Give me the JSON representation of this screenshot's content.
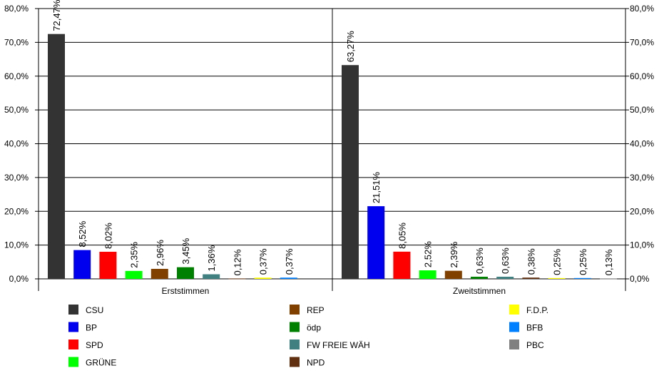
{
  "chart_data": {
    "type": "bar",
    "ylim": [
      0,
      80
    ],
    "y_ticks": [
      "0,0%",
      "10,0%",
      "20,0%",
      "30,0%",
      "40,0%",
      "50,0%",
      "60,0%",
      "70,0%",
      "80,0%"
    ],
    "grid": true,
    "legend_position": "bottom",
    "groups": [
      {
        "name": "Erststimmen",
        "bars": [
          {
            "party": "CSU",
            "value": 72.47,
            "label": "72,47%"
          },
          {
            "party": "BP",
            "value": 8.52,
            "label": "8,52%"
          },
          {
            "party": "SPD",
            "value": 8.02,
            "label": "8,02%"
          },
          {
            "party": "GRÜNE",
            "value": 2.35,
            "label": "2,35%"
          },
          {
            "party": "REP",
            "value": 2.96,
            "label": "2,96%"
          },
          {
            "party": "ödp",
            "value": 3.45,
            "label": "3,45%"
          },
          {
            "party": "FW FREIE WÄH",
            "value": 1.36,
            "label": "1,36%"
          },
          {
            "party": "NPD",
            "value": 0.12,
            "label": "0,12%"
          },
          {
            "party": "F.D.P.",
            "value": 0.37,
            "label": "0,37%"
          },
          {
            "party": "BFB",
            "value": 0.37,
            "label": "0,37%"
          }
        ]
      },
      {
        "name": "Zweitstimmen",
        "bars": [
          {
            "party": "CSU",
            "value": 63.27,
            "label": "63,27%"
          },
          {
            "party": "BP",
            "value": 21.51,
            "label": "21,51%"
          },
          {
            "party": "SPD",
            "value": 8.05,
            "label": "8,05%"
          },
          {
            "party": "GRÜNE",
            "value": 2.52,
            "label": "2,52%"
          },
          {
            "party": "REP",
            "value": 2.39,
            "label": "2,39%"
          },
          {
            "party": "ödp",
            "value": 0.63,
            "label": "0,63%"
          },
          {
            "party": "FW FREIE WÄH",
            "value": 0.63,
            "label": "0,63%"
          },
          {
            "party": "NPD",
            "value": 0.38,
            "label": "0,38%"
          },
          {
            "party": "F.D.P.",
            "value": 0.25,
            "label": "0,25%"
          },
          {
            "party": "BFB",
            "value": 0.25,
            "label": "0,25%"
          },
          {
            "party": "PBC",
            "value": 0.13,
            "label": "0,13%"
          }
        ]
      }
    ],
    "legend": [
      {
        "name": "CSU",
        "color": "#333333"
      },
      {
        "name": "BP",
        "color": "#0000ee"
      },
      {
        "name": "SPD",
        "color": "#ff0000"
      },
      {
        "name": "GRÜNE",
        "color": "#00ff00"
      },
      {
        "name": "REP",
        "color": "#804000"
      },
      {
        "name": "ödp",
        "color": "#008000"
      },
      {
        "name": "FW FREIE WÄH",
        "color": "#408080"
      },
      {
        "name": "NPD",
        "color": "#603010"
      },
      {
        "name": "F.D.P.",
        "color": "#ffff00"
      },
      {
        "name": "BFB",
        "color": "#0080ff"
      },
      {
        "name": "PBC",
        "color": "#808080"
      }
    ]
  }
}
